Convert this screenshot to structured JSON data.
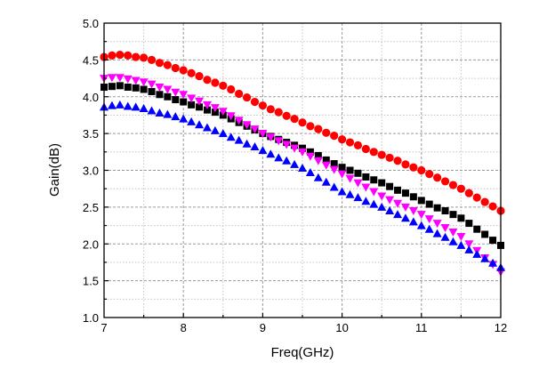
{
  "chart_data": {
    "type": "scatter",
    "title": "",
    "xlabel": "Freq(GHz)",
    "ylabel": "Gain(dB)",
    "xlim": [
      7,
      12
    ],
    "ylim": [
      1.0,
      5.0
    ],
    "x_ticks": [
      "7",
      "8",
      "9",
      "10",
      "11",
      "12"
    ],
    "x_tick_values": [
      7,
      8,
      9,
      10,
      11,
      12
    ],
    "y_ticks": [
      "1.0",
      "1.5",
      "2.0",
      "2.5",
      "3.0",
      "3.5",
      "4.0",
      "4.5",
      "5.0"
    ],
    "y_tick_values": [
      1.0,
      1.5,
      2.0,
      2.5,
      3.0,
      3.5,
      4.0,
      4.5,
      5.0
    ],
    "grid": true,
    "legend": "none",
    "x": [
      7.0,
      7.1,
      7.2,
      7.3,
      7.4,
      7.5,
      7.6,
      7.7,
      7.8,
      7.9,
      8.0,
      8.1,
      8.2,
      8.3,
      8.4,
      8.5,
      8.6,
      8.7,
      8.8,
      8.9,
      9.0,
      9.1,
      9.2,
      9.3,
      9.4,
      9.5,
      9.6,
      9.7,
      9.8,
      9.9,
      10.0,
      10.1,
      10.2,
      10.3,
      10.4,
      10.5,
      10.6,
      10.7,
      10.8,
      10.9,
      11.0,
      11.1,
      11.2,
      11.3,
      11.4,
      11.5,
      11.6,
      11.7,
      11.8,
      11.9,
      12.0
    ],
    "series": [
      {
        "name": "red-circles",
        "marker": "circle",
        "color": "#ff0000",
        "values": [
          4.54,
          4.56,
          4.57,
          4.56,
          4.54,
          4.53,
          4.5,
          4.46,
          4.43,
          4.39,
          4.36,
          4.32,
          4.28,
          4.23,
          4.19,
          4.15,
          4.1,
          4.04,
          3.99,
          3.93,
          3.88,
          3.83,
          3.79,
          3.74,
          3.7,
          3.65,
          3.6,
          3.56,
          3.51,
          3.47,
          3.42,
          3.38,
          3.34,
          3.29,
          3.25,
          3.21,
          3.17,
          3.13,
          3.08,
          3.04,
          3.0,
          2.95,
          2.9,
          2.85,
          2.8,
          2.75,
          2.69,
          2.63,
          2.57,
          2.51,
          2.45
        ]
      },
      {
        "name": "black-squares",
        "marker": "square",
        "color": "#000000",
        "values": [
          4.13,
          4.14,
          4.15,
          4.13,
          4.12,
          4.1,
          4.07,
          4.03,
          4.0,
          3.96,
          3.93,
          3.89,
          3.86,
          3.82,
          3.79,
          3.75,
          3.7,
          3.65,
          3.6,
          3.55,
          3.5,
          3.46,
          3.42,
          3.38,
          3.34,
          3.3,
          3.25,
          3.2,
          3.14,
          3.09,
          3.04,
          3.0,
          2.96,
          2.91,
          2.87,
          2.83,
          2.78,
          2.73,
          2.69,
          2.64,
          2.59,
          2.54,
          2.49,
          2.45,
          2.4,
          2.35,
          2.28,
          2.2,
          2.13,
          2.05,
          1.98
        ]
      },
      {
        "name": "magenta-down-triangles",
        "marker": "triangle-down",
        "color": "#ff00ff",
        "values": [
          4.25,
          4.26,
          4.26,
          4.24,
          4.22,
          4.2,
          4.17,
          4.13,
          4.1,
          4.06,
          4.03,
          3.98,
          3.94,
          3.89,
          3.85,
          3.8,
          3.74,
          3.68,
          3.62,
          3.56,
          3.5,
          3.45,
          3.4,
          3.35,
          3.3,
          3.25,
          3.19,
          3.13,
          3.07,
          3.01,
          2.95,
          2.89,
          2.83,
          2.77,
          2.71,
          2.65,
          2.6,
          2.55,
          2.5,
          2.45,
          2.4,
          2.34,
          2.28,
          2.22,
          2.16,
          2.1,
          2.0,
          1.91,
          1.81,
          1.72,
          1.62
        ]
      },
      {
        "name": "blue-up-triangles",
        "marker": "triangle-up",
        "color": "#0000ff",
        "values": [
          3.86,
          3.88,
          3.89,
          3.87,
          3.86,
          3.84,
          3.81,
          3.78,
          3.76,
          3.73,
          3.7,
          3.66,
          3.62,
          3.58,
          3.54,
          3.5,
          3.45,
          3.41,
          3.36,
          3.32,
          3.27,
          3.22,
          3.17,
          3.13,
          3.08,
          3.03,
          2.97,
          2.9,
          2.84,
          2.77,
          2.71,
          2.67,
          2.63,
          2.58,
          2.54,
          2.5,
          2.45,
          2.4,
          2.35,
          2.3,
          2.25,
          2.2,
          2.14,
          2.09,
          2.03,
          1.98,
          1.92,
          1.86,
          1.8,
          1.74,
          1.68
        ]
      }
    ]
  }
}
